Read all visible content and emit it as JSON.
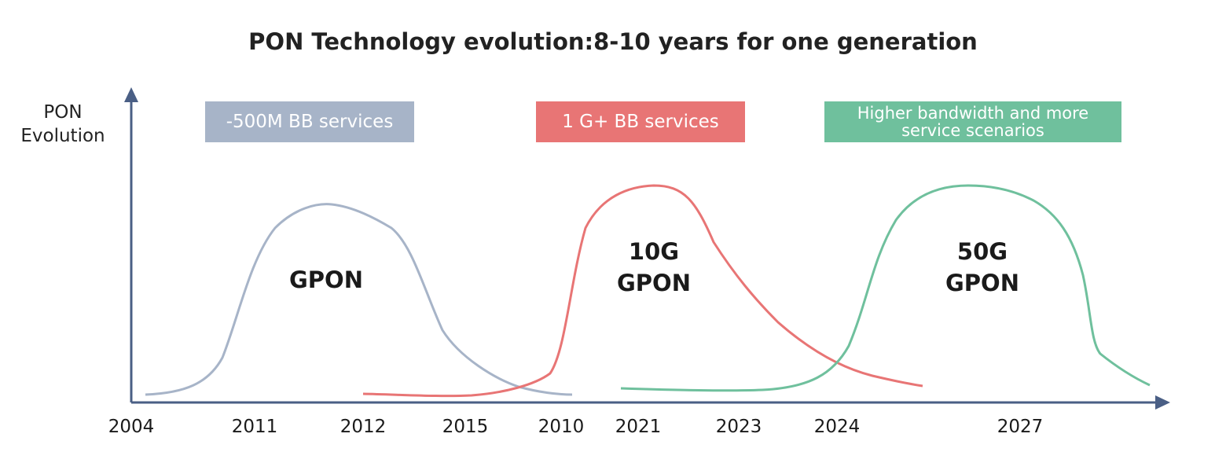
{
  "title": "PON Technology evolution:8-10 years for one generation",
  "y_axis_label": [
    "PON",
    "Evolution"
  ],
  "banners": [
    {
      "text": [
        "-500M BB services"
      ],
      "color": "#a7b4c8"
    },
    {
      "text": [
        "1 G+ BB services"
      ],
      "color": "#e87575"
    },
    {
      "text": [
        "Higher bandwidth and more",
        "service scenarios"
      ],
      "color": "#6fc09d"
    }
  ],
  "generations": [
    {
      "label": [
        "GPON"
      ],
      "color": "#a7b4c8"
    },
    {
      "label": [
        "10G",
        "GPON"
      ],
      "color": "#e87575"
    },
    {
      "label": [
        "50G",
        "GPON"
      ],
      "color": "#6fc09d"
    }
  ],
  "x_ticks": [
    "2004",
    "2011",
    "2012",
    "2015",
    "2010",
    "2021",
    "2023",
    "2024",
    "2027"
  ],
  "colors": {
    "axis": "#4a5f85",
    "text": "#1a1a1a"
  }
}
